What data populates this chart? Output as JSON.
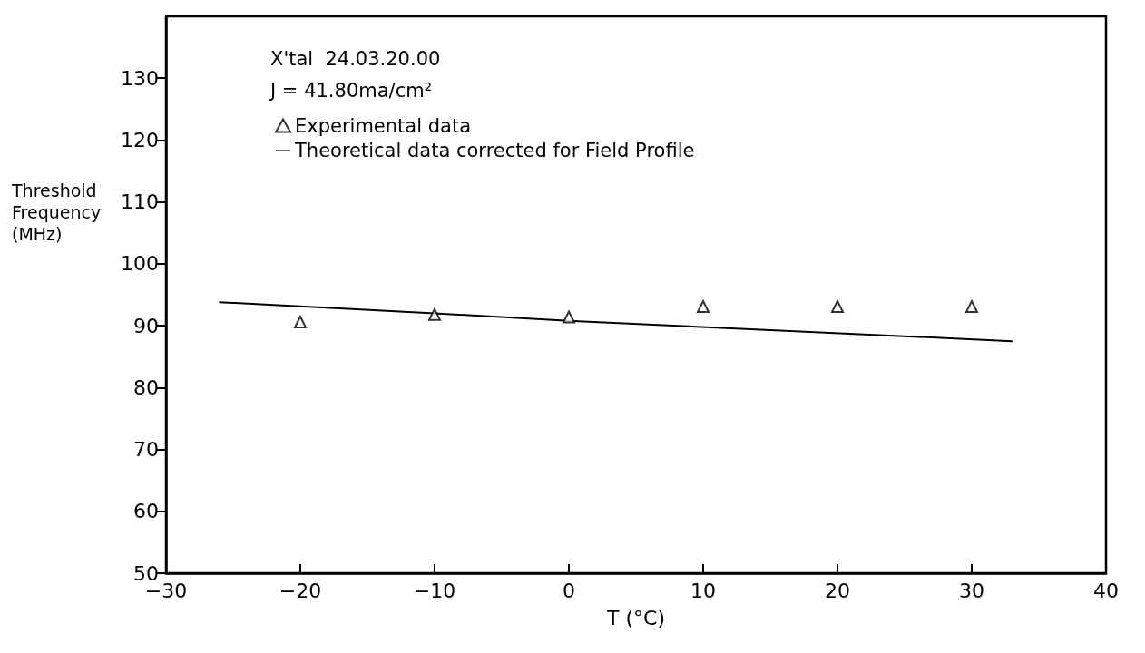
{
  "chart_data": {
    "type": "scatter",
    "xlabel": "T (°C)",
    "ylabel": "Threshold\nFrequency\n(MHz)",
    "annotations": [
      "X'tal  24.03.20.00",
      "J = 41.80ma/cm²"
    ],
    "xlim": [
      -30,
      40
    ],
    "xticks": [
      {
        "value": -30,
        "label": "−30"
      },
      {
        "value": -20,
        "label": "−20"
      },
      {
        "value": -10,
        "label": "−10"
      },
      0,
      10,
      20,
      30,
      40
    ],
    "ylim": [
      50,
      140
    ],
    "yticks": [
      50,
      60,
      70,
      80,
      90,
      100,
      110,
      120,
      130
    ],
    "grid": false,
    "legend": "top left",
    "series": [
      {
        "name": "Experimental data",
        "marker": "triangle",
        "color": "#000000",
        "x": [
          -20,
          -10,
          0,
          10,
          20,
          30
        ],
        "values": [
          90.6,
          91.8,
          91.4,
          93.1,
          93.1,
          93.1
        ]
      },
      {
        "name": "Theoretical data corrected for Field Profile",
        "type": "line",
        "marker": "none",
        "line_style": "solid",
        "color": "#000000",
        "x": [
          -26,
          -10,
          0,
          33
        ],
        "values": [
          93.8,
          92.0,
          90.8,
          87.5
        ]
      }
    ]
  }
}
